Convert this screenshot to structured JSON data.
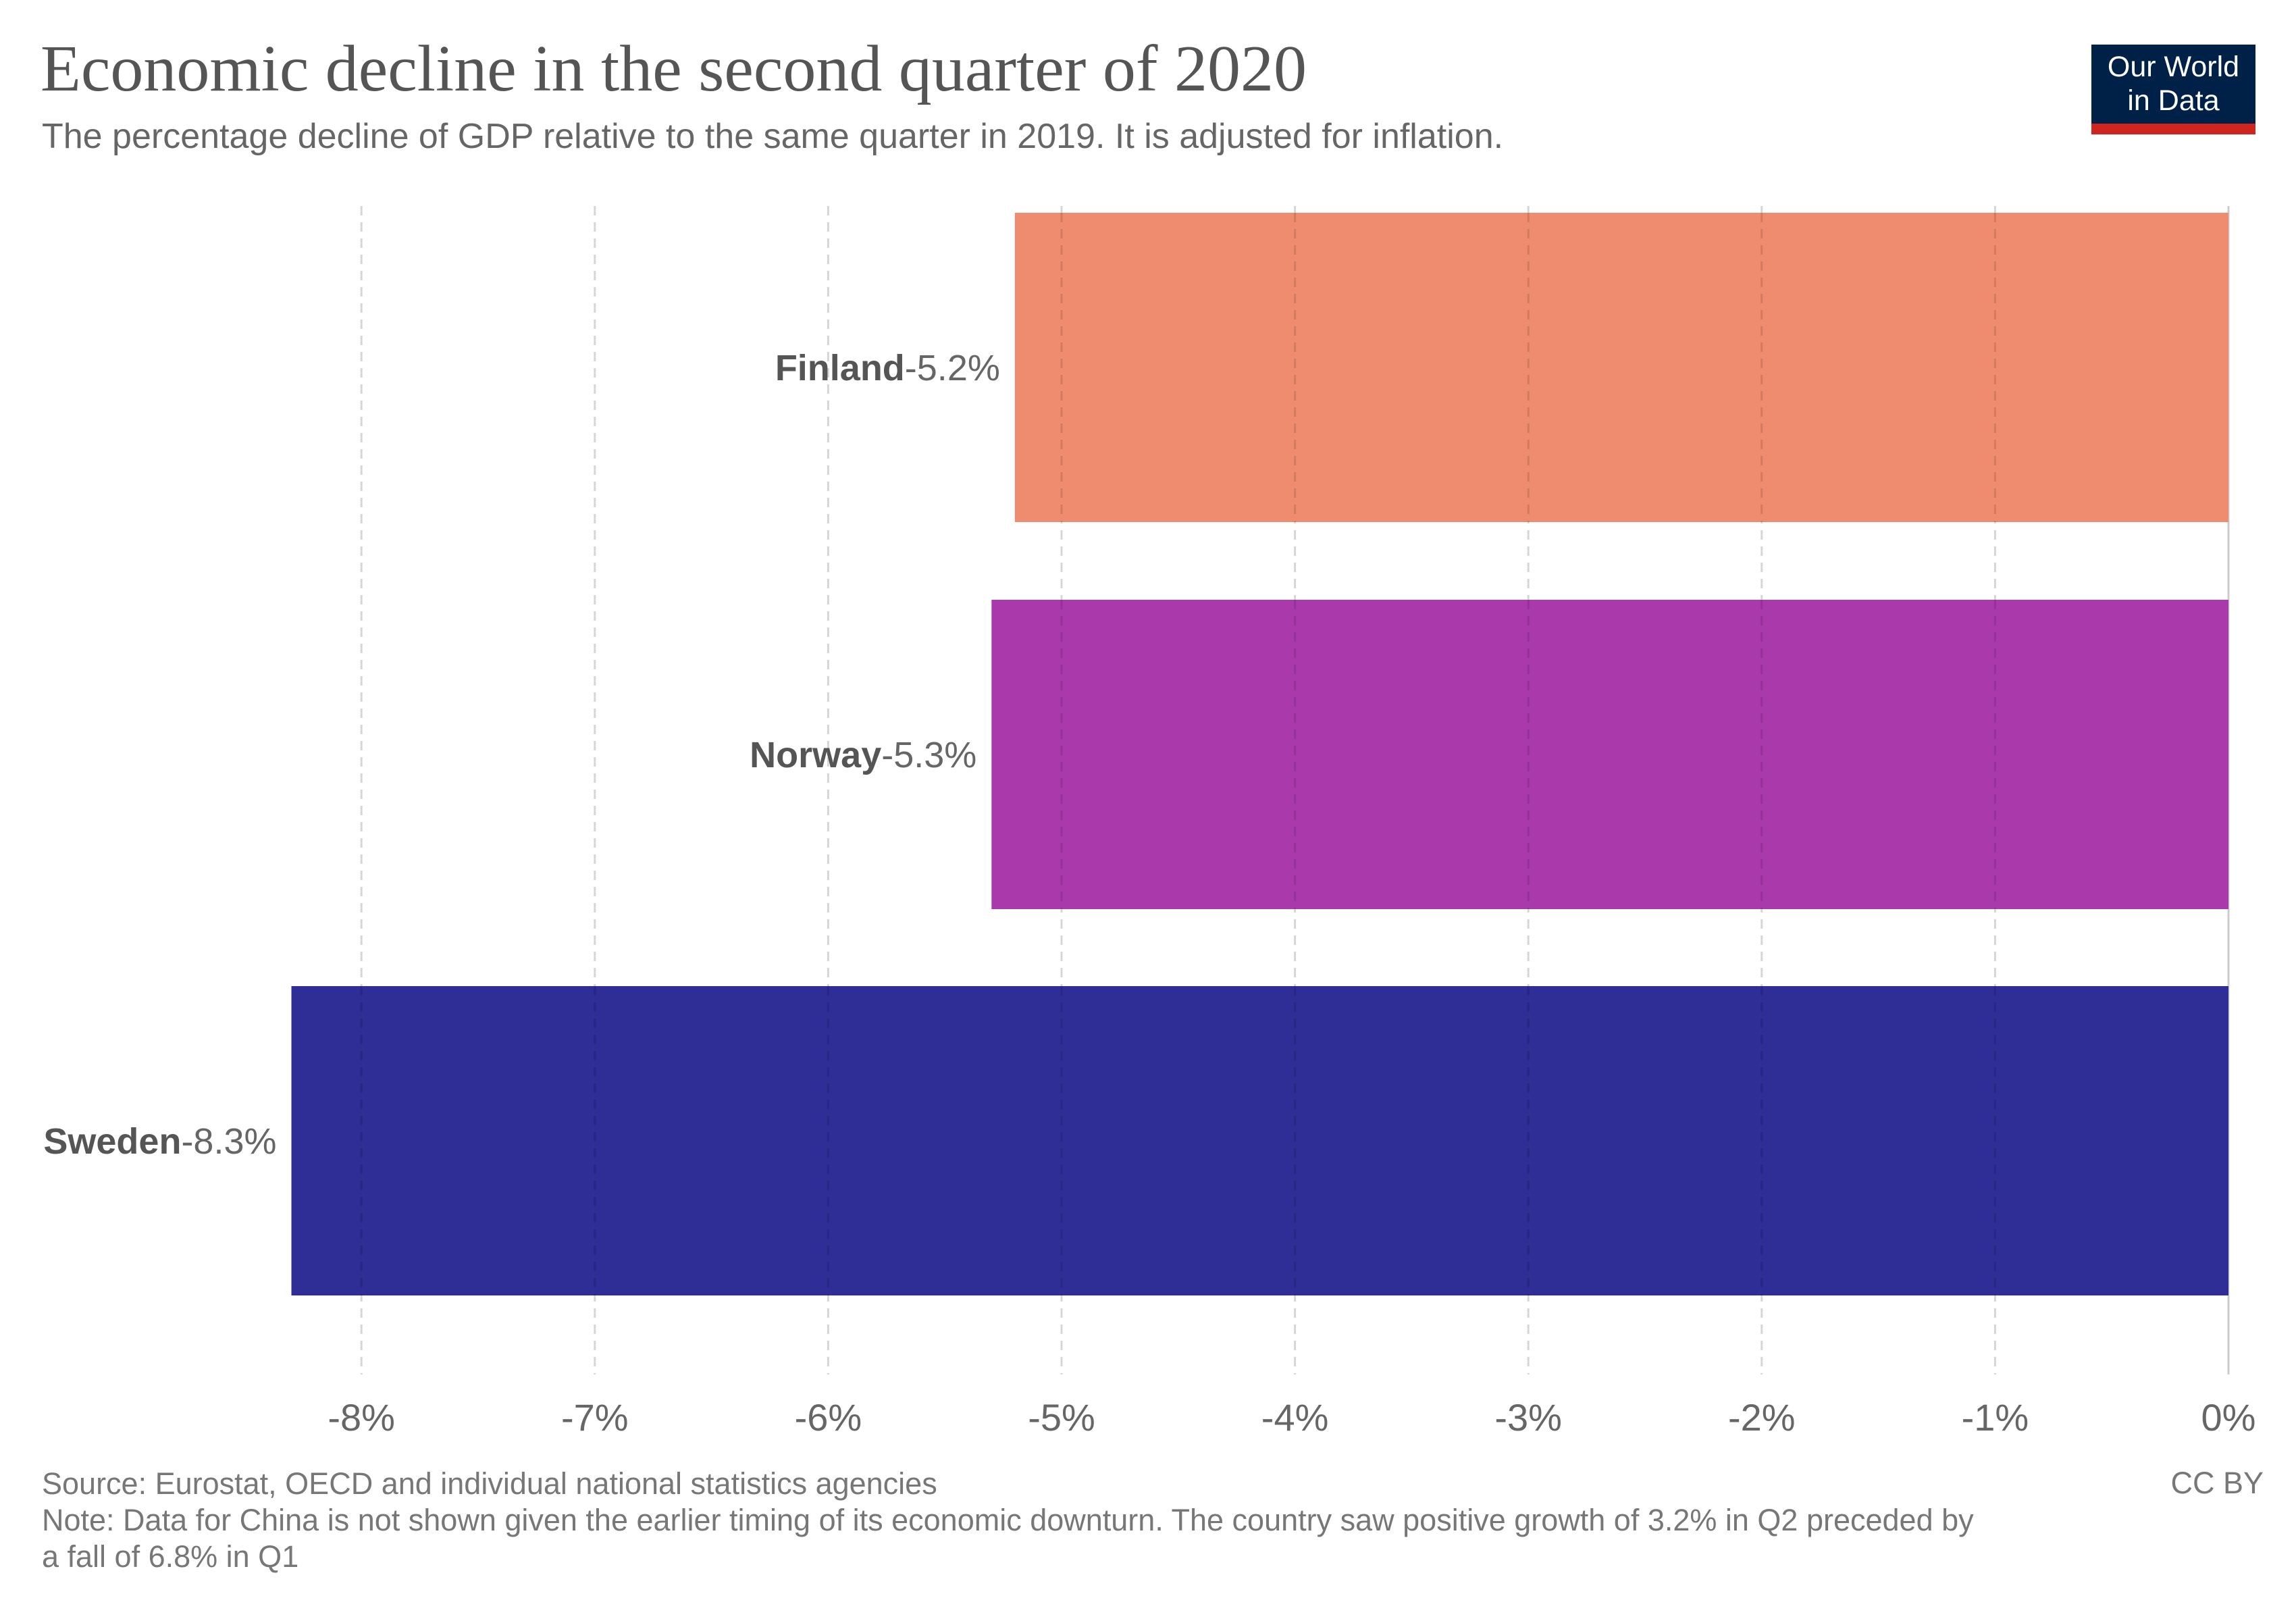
{
  "header": {
    "title": "Economic decline in the second quarter of 2020",
    "subtitle": "The percentage decline of GDP relative to the same quarter in 2019. It is adjusted for inflation."
  },
  "logo": {
    "line1": "Our World",
    "line2": "in Data",
    "bg_color": "#002147",
    "accent_color": "#ce261e"
  },
  "footer": {
    "source": "Source: Eurostat, OECD and individual national statistics agencies",
    "note_line1": "Note: Data for China is not shown given the earlier timing of its economic downturn. The country saw positive growth of 3.2% in Q2 preceded by",
    "note_line2": "a fall of 6.8% in Q1",
    "license": "CC BY"
  },
  "chart_data": {
    "type": "bar",
    "orientation": "horizontal",
    "categories": [
      "Finland",
      "Norway",
      "Sweden"
    ],
    "values": [
      -5.2,
      -5.3,
      -8.3
    ],
    "value_labels": [
      "-5.2%",
      "-5.3%",
      "-8.3%"
    ],
    "colors": [
      "#ef8b6e",
      "#aa3aac",
      "#2f2d96"
    ],
    "xlim": [
      -8.3,
      0
    ],
    "xticks": [
      -8,
      -7,
      -6,
      -5,
      -4,
      -3,
      -2,
      -1,
      0
    ],
    "xtick_labels": [
      "-8%",
      "-7%",
      "-6%",
      "-5%",
      "-4%",
      "-3%",
      "-2%",
      "-1%",
      "0%"
    ],
    "grid": true
  }
}
